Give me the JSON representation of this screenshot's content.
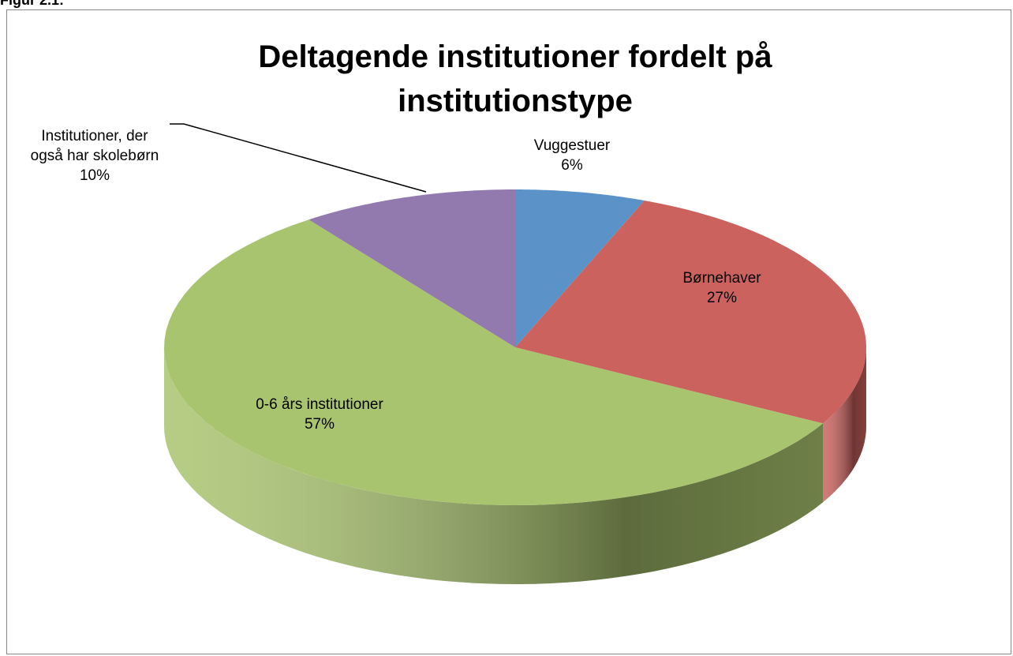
{
  "caption": "Figur 2.1:",
  "chart_data": {
    "type": "pie3d",
    "title": "Deltagende institutioner fordelt på institutionstype",
    "categories": [
      "Vuggestuer",
      "Børnehaver",
      "0-6 års institutioner",
      "Institutioner, der også har skolebørn"
    ],
    "values": [
      6,
      27,
      57,
      10
    ],
    "value_labels": [
      "6%",
      "27%",
      "57%",
      "10%"
    ],
    "colors": [
      "#5b93c8",
      "#cc625e",
      "#a9c46e",
      "#9279ae"
    ]
  }
}
